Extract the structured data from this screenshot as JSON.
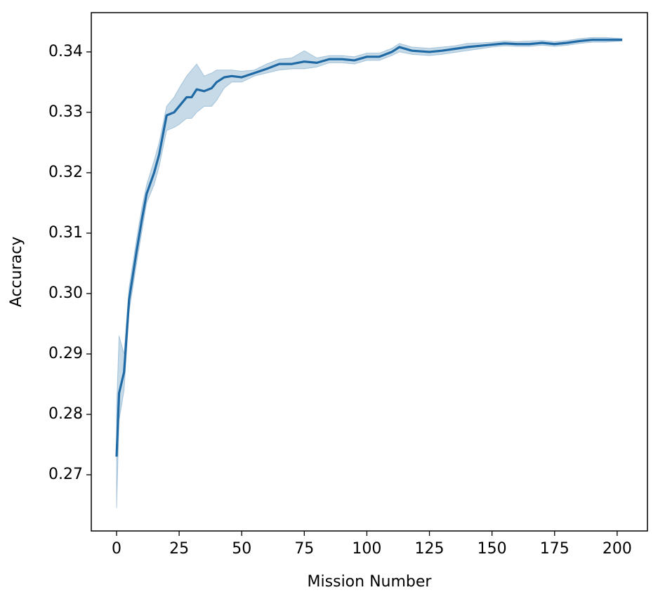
{
  "chart_data": {
    "type": "line",
    "x_label": "Mission Number",
    "y_label": "Accuracy",
    "x": [
      0,
      1,
      3,
      5,
      8,
      10,
      12,
      15,
      17,
      20,
      23,
      25,
      28,
      30,
      32,
      35,
      38,
      40,
      43,
      46,
      50,
      55,
      60,
      65,
      70,
      75,
      80,
      85,
      90,
      95,
      100,
      105,
      110,
      113,
      118,
      125,
      130,
      135,
      140,
      145,
      150,
      155,
      160,
      165,
      170,
      175,
      180,
      185,
      190,
      195,
      202
    ],
    "series": [
      {
        "color": "#1f6aa5",
        "values": [
          0.273,
          0.2835,
          0.287,
          0.299,
          0.307,
          0.312,
          0.3165,
          0.32,
          0.323,
          0.3295,
          0.33,
          0.331,
          0.3325,
          0.3325,
          0.3338,
          0.3335,
          0.334,
          0.335,
          0.3358,
          0.336,
          0.3358,
          0.3365,
          0.3372,
          0.338,
          0.338,
          0.3384,
          0.3382,
          0.3388,
          0.3388,
          0.3386,
          0.3392,
          0.3392,
          0.34,
          0.3408,
          0.3402,
          0.34,
          0.3402,
          0.3405,
          0.3408,
          0.341,
          0.3412,
          0.3414,
          0.3413,
          0.3413,
          0.3415,
          0.3413,
          0.3415,
          0.3418,
          0.342,
          0.342,
          0.342
        ],
        "lower": [
          0.2645,
          0.279,
          0.284,
          0.297,
          0.305,
          0.31,
          0.315,
          0.318,
          0.321,
          0.327,
          0.3275,
          0.328,
          0.329,
          0.329,
          0.33,
          0.331,
          0.331,
          0.332,
          0.334,
          0.335,
          0.335,
          0.336,
          0.3365,
          0.337,
          0.3372,
          0.3372,
          0.3375,
          0.3382,
          0.3382,
          0.338,
          0.3386,
          0.3386,
          0.3394,
          0.34,
          0.3396,
          0.3394,
          0.3396,
          0.3399,
          0.3402,
          0.3405,
          0.3408,
          0.341,
          0.3409,
          0.3409,
          0.3411,
          0.3409,
          0.3411,
          0.3414,
          0.3416,
          0.3416,
          0.3418
        ],
        "upper": [
          0.281,
          0.293,
          0.29,
          0.301,
          0.309,
          0.314,
          0.318,
          0.322,
          0.325,
          0.331,
          0.3325,
          0.334,
          0.336,
          0.337,
          0.338,
          0.336,
          0.3365,
          0.337,
          0.337,
          0.337,
          0.3368,
          0.337,
          0.338,
          0.3388,
          0.339,
          0.3402,
          0.339,
          0.3394,
          0.3394,
          0.3392,
          0.3398,
          0.3398,
          0.3406,
          0.3414,
          0.3408,
          0.3406,
          0.3408,
          0.341,
          0.3414,
          0.3415,
          0.3416,
          0.3418,
          0.3417,
          0.3418,
          0.3419,
          0.3417,
          0.3419,
          0.3422,
          0.3424,
          0.3424,
          0.3422
        ]
      }
    ],
    "xlim": [
      -10.1,
      212.1
    ],
    "ylim": [
      0.2607,
      0.3465
    ],
    "xticks": [
      0,
      25,
      50,
      75,
      100,
      125,
      150,
      175,
      200
    ],
    "yticks": [
      0.27,
      0.28,
      0.29,
      {
        "value": 0.3,
        "label": "0.30"
      },
      0.31,
      0.32,
      0.33,
      0.34
    ]
  }
}
